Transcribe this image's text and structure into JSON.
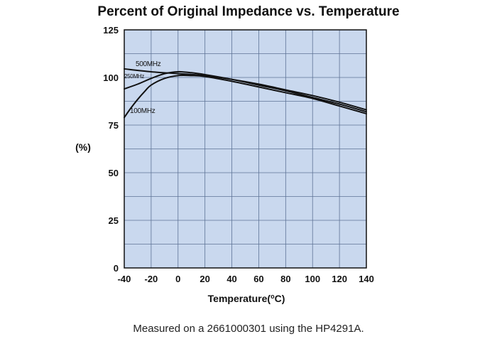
{
  "chart_data": {
    "type": "line",
    "title": "Percent of Original Impedance vs. Temperature",
    "xlabel": "Temperature(°C)",
    "xlabel_main": "Temperature(",
    "xlabel_super": "o",
    "xlabel_tail": "C)",
    "ylabel": "(%)",
    "xlim": [
      -40,
      140
    ],
    "ylim": [
      0,
      125
    ],
    "xticks": [
      -40,
      -20,
      0,
      20,
      40,
      60,
      80,
      100,
      120,
      140
    ],
    "yticks": [
      0,
      25,
      50,
      75,
      100,
      125
    ],
    "grid": true,
    "series": [
      {
        "name": "500MHz",
        "x": [
          -40,
          -20,
          0,
          20,
          40,
          60,
          80,
          100,
          120,
          140
        ],
        "values": [
          104.5,
          103,
          102,
          101,
          99,
          96.5,
          93.5,
          90.5,
          87,
          83
        ]
      },
      {
        "name": "250MHz",
        "x": [
          -40,
          -30,
          -20,
          -10,
          0,
          10,
          20,
          40,
          60,
          80,
          100,
          120,
          140
        ],
        "values": [
          94,
          96.5,
          99.5,
          102,
          103,
          102.5,
          101.5,
          99,
          96,
          93,
          89.5,
          86,
          82
        ]
      },
      {
        "name": "100MHz",
        "x": [
          -40,
          -35,
          -30,
          -25,
          -20,
          -10,
          0,
          10,
          20,
          40,
          60,
          80,
          100,
          120,
          140
        ],
        "values": [
          79,
          84,
          88.5,
          92.5,
          96,
          99.5,
          101,
          101,
          100.5,
          98,
          95,
          92,
          89,
          85,
          81
        ]
      }
    ]
  },
  "colors": {
    "plot_background": "#c9d8ee",
    "grid": "#5e7396",
    "line": "#111111"
  },
  "caption": "Measured on a 2661000301 using the HP4291A."
}
